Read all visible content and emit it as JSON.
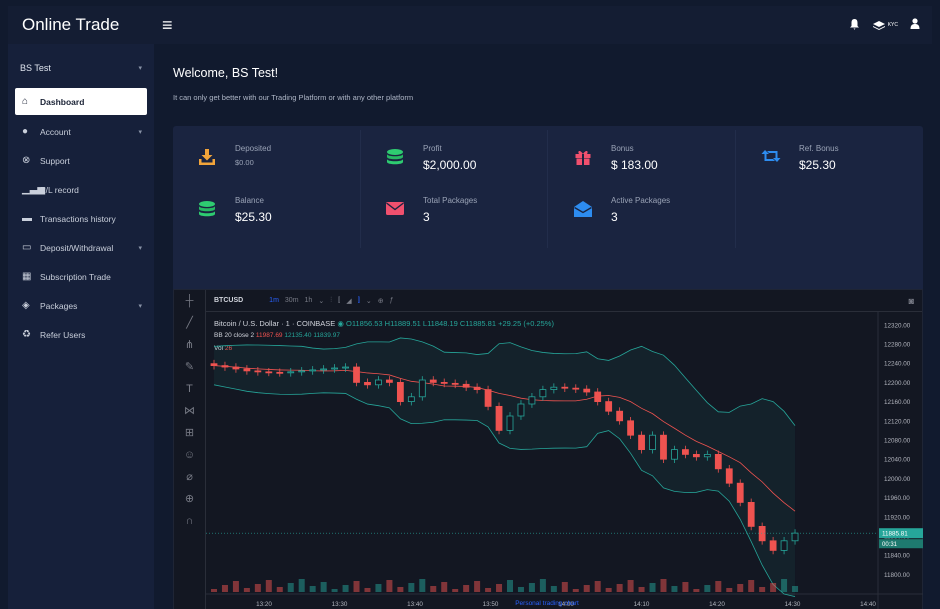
{
  "app": {
    "title": "Online Trade"
  },
  "topbar": {
    "menu_icon": "hamburger-icon",
    "icons": [
      "bell-icon",
      "kyc-icon",
      "user-icon"
    ],
    "kyc_label": "KYC"
  },
  "sidebar": {
    "user": "BS Test",
    "items": [
      {
        "label": "Dashboard",
        "icon": "home-icon",
        "active": true,
        "submenu": false
      },
      {
        "label": "Account",
        "icon": "user-icon",
        "submenu": true
      },
      {
        "label": "Support",
        "icon": "support-icon",
        "submenu": false
      },
      {
        "label": "P/L record",
        "icon": "signal-icon",
        "submenu": false
      },
      {
        "label": "Transactions history",
        "icon": "briefcase-icon",
        "submenu": false
      },
      {
        "label": "Deposit/Withdrawal",
        "icon": "card-icon",
        "submenu": true
      },
      {
        "label": "Subscription Trade",
        "icon": "grid-icon",
        "submenu": false
      },
      {
        "label": "Packages",
        "icon": "boxes-icon",
        "submenu": true
      },
      {
        "label": "Refer Users",
        "icon": "recycle-icon",
        "submenu": false
      }
    ]
  },
  "main": {
    "welcome": "Welcome, BS Test!",
    "subtitle": "It can only get better with our Trading Platform or with any other platform",
    "stats": [
      {
        "label": "Deposited",
        "value": "$0.00",
        "icon": "download-icon",
        "color": "#f2a43a",
        "small": true
      },
      {
        "label": "Profit",
        "value": "$2,000.00",
        "icon": "coins-icon",
        "color": "#2ecc71"
      },
      {
        "label": "Bonus",
        "value": "$ 183.00",
        "icon": "gift-icon",
        "color": "#f0506e"
      },
      {
        "label": "Ref. Bonus",
        "value": "$25.30",
        "icon": "retweet-icon",
        "color": "#2d8cf0"
      },
      {
        "label": "Balance",
        "value": "$25.30",
        "icon": "coins-icon",
        "color": "#2ecc71"
      },
      {
        "label": "Total Packages",
        "value": "3",
        "icon": "envelope-icon",
        "color": "#f0506e"
      },
      {
        "label": "Active Packages",
        "value": "3",
        "icon": "envelope-open-icon",
        "color": "#2d8cf0"
      }
    ]
  },
  "chart": {
    "symbol": "BTCUSD",
    "timeframes": [
      "1m",
      "30m",
      "1h"
    ],
    "active_timeframe": "1m",
    "legend": "Bitcoin / U.S. Dollar · 1 · COINBASE",
    "ohlc": "O11856.53 H11889.51 L11848.19 C11885.81 +29.25 (+0.25%)",
    "bb_label": "BB 20 close 2",
    "bb_values": [
      "11987.69",
      "12135.40",
      "11839.97"
    ],
    "vol_label": "Vol",
    "vol_value": "26",
    "caption": "Personal trading chart"
  },
  "chart_data": {
    "type": "candlestick",
    "symbol": "BTCUSD",
    "y_ticks": [
      "12320.00",
      "12280.00",
      "12240.00",
      "12200.00",
      "12160.00",
      "12120.00",
      "12080.00",
      "12040.00",
      "12000.00",
      "11960.00",
      "11920.00",
      "11880.00",
      "11840.00",
      "11800.00"
    ],
    "x_ticks": [
      "13:20",
      "13:30",
      "13:40",
      "13:50",
      "14:00",
      "14:10",
      "14:20",
      "14:30",
      "14:40"
    ],
    "last_price": "11885.81",
    "countdown": "00:31",
    "ylim": [
      11780,
      12330
    ],
    "close_path": [
      12235,
      12232,
      12228,
      12224,
      12222,
      12221,
      12220,
      12222,
      12224,
      12226,
      12228,
      12230,
      12232,
      12200,
      12195,
      12205,
      12200,
      12160,
      12170,
      12205,
      12200,
      12198,
      12196,
      12190,
      12185,
      12150,
      12100,
      12130,
      12155,
      12170,
      12185,
      12190,
      12188,
      12186,
      12180,
      12160,
      12140,
      12120,
      12090,
      12060,
      12090,
      12040,
      12060,
      12050,
      12045,
      12050,
      12020,
      11990,
      11950,
      11900,
      11870,
      11850,
      11870,
      11886
    ]
  }
}
